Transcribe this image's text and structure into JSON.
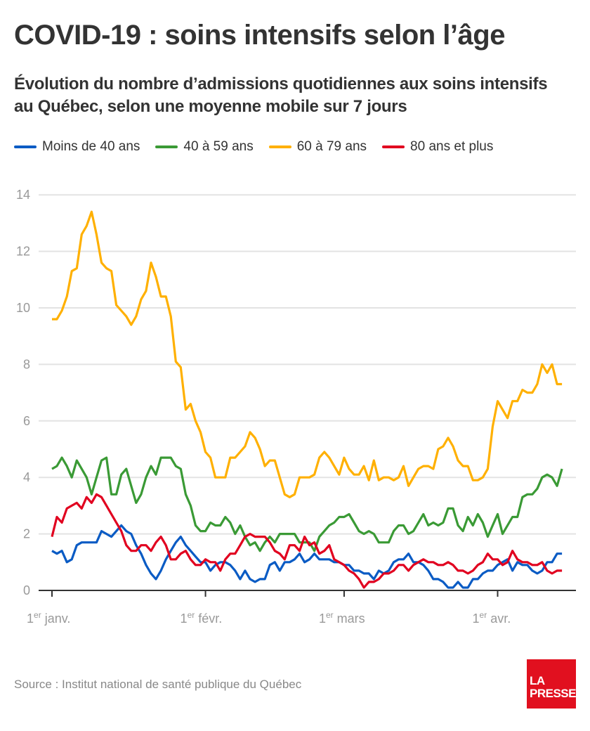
{
  "header": {
    "title": "COVID-19 : soins intensifs selon l’âge",
    "subtitle": "Évolution du nombre d’admissions quotidiennes aux soins intensifs au Québec, selon une moyenne mobile sur 7 jours"
  },
  "footer": {
    "source": "Source : Institut national de santé publique du Québec",
    "logo_line1": "LA",
    "logo_line2": "PRESSE"
  },
  "chart_data": {
    "type": "line",
    "title": "COVID-19 : soins intensifs selon l’âge",
    "subtitle": "Évolution du nombre d’admissions quotidiennes aux soins intensifs au Québec, selon une moyenne mobile sur 7 jours",
    "xlabel": "",
    "ylabel": "",
    "ylim": [
      0,
      14
    ],
    "yticks": [
      0,
      2,
      4,
      6,
      8,
      10,
      12,
      14
    ],
    "grid": true,
    "legend_position": "top",
    "x_start": "1er janv.",
    "x_unit": "day",
    "x_days": 104,
    "xticks": [
      {
        "day": 0,
        "sup_prefix": "1",
        "sup": "er",
        "label": " janv."
      },
      {
        "day": 31,
        "sup_prefix": "1",
        "sup": "er",
        "label": " févr."
      },
      {
        "day": 59,
        "sup_prefix": "1",
        "sup": "er",
        "label": " mars"
      },
      {
        "day": 90,
        "sup_prefix": "1",
        "sup": "er",
        "label": " avr."
      }
    ],
    "series": [
      {
        "name": "Moins de 40 ans",
        "color": "#0a5bc4",
        "values": [
          1.4,
          1.3,
          1.4,
          1.0,
          1.1,
          1.6,
          1.7,
          1.7,
          1.7,
          1.7,
          2.1,
          2.0,
          1.9,
          2.1,
          2.3,
          2.1,
          2.0,
          1.6,
          1.3,
          0.9,
          0.6,
          0.4,
          0.7,
          1.1,
          1.4,
          1.7,
          1.9,
          1.6,
          1.4,
          1.2,
          1.0,
          1.0,
          0.7,
          0.9,
          1.0,
          1.0,
          0.9,
          0.7,
          0.4,
          0.7,
          0.4,
          0.3,
          0.4,
          0.4,
          0.9,
          1.0,
          0.7,
          1.0,
          1.0,
          1.1,
          1.3,
          1.0,
          1.1,
          1.3,
          1.1,
          1.1,
          1.1,
          1.0,
          1.0,
          0.9,
          0.9,
          0.7,
          0.7,
          0.6,
          0.6,
          0.4,
          0.7,
          0.6,
          0.7,
          1.0,
          1.1,
          1.1,
          1.3,
          1.0,
          1.0,
          0.9,
          0.7,
          0.4,
          0.4,
          0.3,
          0.1,
          0.1,
          0.3,
          0.1,
          0.1,
          0.4,
          0.4,
          0.6,
          0.7,
          0.7,
          0.9,
          1.0,
          1.1,
          0.7,
          1.0,
          0.9,
          0.9,
          0.7,
          0.6,
          0.7,
          1.0,
          1.0,
          1.3,
          1.3
        ]
      },
      {
        "name": "40 à 59 ans",
        "color": "#3a9a35",
        "values": [
          4.3,
          4.4,
          4.7,
          4.4,
          4.0,
          4.6,
          4.3,
          4.0,
          3.4,
          4.0,
          4.6,
          4.7,
          3.4,
          3.4,
          4.1,
          4.3,
          3.7,
          3.1,
          3.4,
          4.0,
          4.4,
          4.1,
          4.7,
          4.7,
          4.7,
          4.4,
          4.3,
          3.4,
          3.0,
          2.3,
          2.1,
          2.1,
          2.4,
          2.3,
          2.3,
          2.6,
          2.4,
          2.0,
          2.3,
          1.9,
          1.6,
          1.7,
          1.4,
          1.7,
          1.9,
          1.7,
          2.0,
          2.0,
          2.0,
          2.0,
          1.7,
          1.7,
          1.7,
          1.4,
          1.9,
          2.1,
          2.3,
          2.4,
          2.6,
          2.6,
          2.7,
          2.4,
          2.1,
          2.0,
          2.1,
          2.0,
          1.7,
          1.7,
          1.7,
          2.1,
          2.3,
          2.3,
          2.0,
          2.1,
          2.4,
          2.7,
          2.3,
          2.4,
          2.3,
          2.4,
          2.9,
          2.9,
          2.3,
          2.1,
          2.6,
          2.3,
          2.7,
          2.4,
          1.9,
          2.3,
          2.7,
          2.0,
          2.3,
          2.6,
          2.6,
          3.3,
          3.4,
          3.4,
          3.6,
          4.0,
          4.1,
          4.0,
          3.7,
          4.3
        ]
      },
      {
        "name": "60 à 79 ans",
        "color": "#ffb000",
        "values": [
          9.6,
          9.6,
          9.9,
          10.4,
          11.3,
          11.4,
          12.6,
          12.9,
          13.4,
          12.6,
          11.6,
          11.4,
          11.3,
          10.1,
          9.9,
          9.7,
          9.4,
          9.7,
          10.3,
          10.6,
          11.6,
          11.1,
          10.4,
          10.4,
          9.7,
          8.1,
          7.9,
          6.4,
          6.6,
          6.0,
          5.6,
          4.9,
          4.7,
          4.0,
          4.0,
          4.0,
          4.7,
          4.7,
          4.9,
          5.1,
          5.6,
          5.4,
          5.0,
          4.4,
          4.6,
          4.6,
          4.0,
          3.4,
          3.3,
          3.4,
          4.0,
          4.0,
          4.0,
          4.1,
          4.7,
          4.9,
          4.7,
          4.4,
          4.1,
          4.7,
          4.3,
          4.1,
          4.1,
          4.4,
          3.9,
          4.6,
          3.9,
          4.0,
          4.0,
          3.9,
          4.0,
          4.4,
          3.7,
          4.0,
          4.3,
          4.4,
          4.4,
          4.3,
          5.0,
          5.1,
          5.4,
          5.1,
          4.6,
          4.4,
          4.4,
          3.9,
          3.9,
          4.0,
          4.3,
          5.8,
          6.7,
          6.4,
          6.1,
          6.7,
          6.7,
          7.1,
          7.0,
          7.0,
          7.3,
          8.0,
          7.7,
          8.0,
          7.3,
          7.3
        ]
      },
      {
        "name": "80 ans et plus",
        "color": "#e1001f",
        "values": [
          1.9,
          2.6,
          2.4,
          2.9,
          3.0,
          3.1,
          2.9,
          3.3,
          3.1,
          3.4,
          3.3,
          3.0,
          2.7,
          2.4,
          2.1,
          1.6,
          1.4,
          1.4,
          1.6,
          1.6,
          1.4,
          1.7,
          1.9,
          1.6,
          1.1,
          1.1,
          1.3,
          1.4,
          1.1,
          0.9,
          0.9,
          1.1,
          1.0,
          1.0,
          0.7,
          1.1,
          1.3,
          1.3,
          1.6,
          1.9,
          2.0,
          1.9,
          1.9,
          1.9,
          1.7,
          1.4,
          1.3,
          1.1,
          1.6,
          1.6,
          1.4,
          1.9,
          1.6,
          1.7,
          1.3,
          1.4,
          1.6,
          1.1,
          1.0,
          0.9,
          0.7,
          0.6,
          0.4,
          0.1,
          0.3,
          0.3,
          0.4,
          0.6,
          0.6,
          0.7,
          0.9,
          0.9,
          0.7,
          0.9,
          1.0,
          1.1,
          1.0,
          1.0,
          0.9,
          0.9,
          1.0,
          0.9,
          0.7,
          0.7,
          0.6,
          0.7,
          0.9,
          1.0,
          1.3,
          1.1,
          1.1,
          0.9,
          1.0,
          1.4,
          1.1,
          1.0,
          1.0,
          0.9,
          0.9,
          1.0,
          0.7,
          0.6,
          0.7,
          0.7
        ]
      }
    ]
  }
}
